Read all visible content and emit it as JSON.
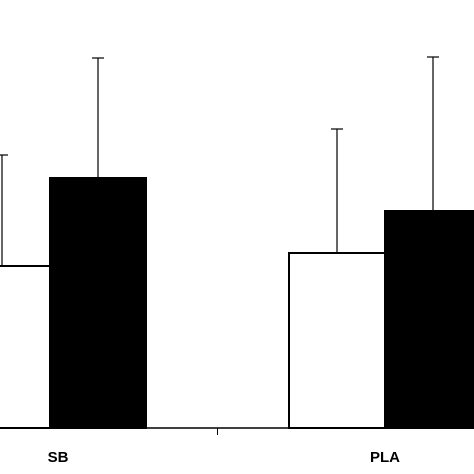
{
  "chart_data": {
    "type": "bar",
    "categories": [
      "SB",
      "PLA"
    ],
    "series": [
      {
        "color": "#ffffff",
        "values": [
          162,
          175
        ],
        "errors": [
          111,
          124
        ]
      },
      {
        "color": "#000000",
        "values": [
          250,
          217
        ],
        "errors": [
          120,
          154
        ]
      }
    ],
    "ylim": [
      0,
      428
    ]
  }
}
